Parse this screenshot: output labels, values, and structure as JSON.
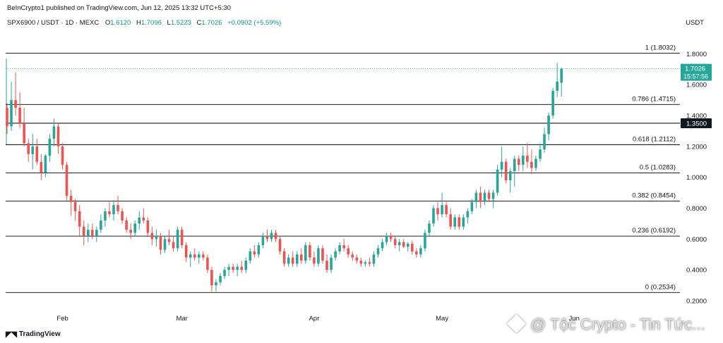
{
  "header": {
    "publisher": "BeInCrypto1 published on TradingView.com, Jun 12, 2025 13:32 UTC+5:30"
  },
  "symbol": {
    "name": "SPX6900 / USDT · 1D · MEXC",
    "open_label": "O",
    "open": "1.6120",
    "high_label": "H",
    "high": "1.7096",
    "low_label": "L",
    "low": "1.5223",
    "close_label": "C",
    "close": "1.7026",
    "change": "+0.0902 (+5.59%)"
  },
  "currency": "USDT",
  "brand": "TradingView",
  "watermark": "@ Tộc Crypto - Tin Tức...",
  "colors": {
    "up": "#26a69a",
    "down": "#ef5350",
    "fib_line": "#000000",
    "price_tag": "#26a69a",
    "level_tag": "#131722"
  },
  "chart_data": {
    "type": "candlestick",
    "title": "",
    "xlabel": "",
    "ylabel": "",
    "ylim": [
      0.15,
      1.92
    ],
    "y_ticks": [
      "1.8000",
      "1.6000",
      "1.4000",
      "1.2000",
      "1.0000",
      "0.8000",
      "0.6000",
      "0.4000",
      "0.2000"
    ],
    "x_ticks": [
      {
        "label": "Feb",
        "index": 13
      },
      {
        "label": "Mar",
        "index": 41
      },
      {
        "label": "Apr",
        "index": 72
      },
      {
        "label": "May",
        "index": 102
      },
      {
        "label": "Jun",
        "index": 133
      }
    ],
    "fib_levels": [
      {
        "label": "1 (1.8032)",
        "value": 1.8032
      },
      {
        "label": "0.786 (1.4715)",
        "value": 1.4715
      },
      {
        "label": "0.618 (1.2112)",
        "value": 1.2112
      },
      {
        "label": "0.5 (1.0283)",
        "value": 1.0283
      },
      {
        "label": "0.382 (0.8454)",
        "value": 0.8454
      },
      {
        "label": "0.236 (0.6192)",
        "value": 0.6192
      },
      {
        "label": "0 (0.2534)",
        "value": 0.2534
      }
    ],
    "horizontal_line": {
      "value": 1.35,
      "label": "1.3500"
    },
    "last_price": {
      "value": 1.7026,
      "label": "1.7026",
      "countdown": "15:57:56"
    },
    "candles": [
      [
        1.45,
        1.48,
        1.28,
        1.33
      ],
      [
        1.33,
        1.62,
        1.3,
        1.5
      ],
      [
        1.5,
        1.68,
        1.4,
        1.45
      ],
      [
        1.45,
        1.55,
        1.32,
        1.35
      ],
      [
        1.35,
        1.45,
        1.2,
        1.22
      ],
      [
        1.22,
        1.25,
        1.1,
        1.15
      ],
      [
        1.15,
        1.28,
        1.05,
        1.2
      ],
      [
        1.2,
        1.25,
        1.08,
        1.1
      ],
      [
        1.1,
        1.15,
        0.98,
        1.03
      ],
      [
        1.03,
        1.15,
        1.0,
        1.14
      ],
      [
        1.14,
        1.28,
        1.1,
        1.25
      ],
      [
        1.25,
        1.38,
        1.2,
        1.33
      ],
      [
        1.33,
        1.35,
        1.15,
        1.2
      ],
      [
        1.2,
        1.22,
        1.05,
        1.08
      ],
      [
        1.08,
        1.1,
        0.85,
        0.88
      ],
      [
        0.88,
        0.92,
        0.75,
        0.84
      ],
      [
        0.84,
        0.86,
        0.72,
        0.78
      ],
      [
        0.78,
        0.82,
        0.62,
        0.68
      ],
      [
        0.68,
        0.72,
        0.56,
        0.62
      ],
      [
        0.62,
        0.7,
        0.58,
        0.66
      ],
      [
        0.66,
        0.7,
        0.6,
        0.62
      ],
      [
        0.62,
        0.68,
        0.58,
        0.66
      ],
      [
        0.66,
        0.76,
        0.64,
        0.72
      ],
      [
        0.72,
        0.8,
        0.68,
        0.78
      ],
      [
        0.78,
        0.84,
        0.74,
        0.76
      ],
      [
        0.76,
        0.85,
        0.72,
        0.82
      ],
      [
        0.82,
        0.88,
        0.76,
        0.78
      ],
      [
        0.78,
        0.8,
        0.7,
        0.72
      ],
      [
        0.72,
        0.74,
        0.64,
        0.66
      ],
      [
        0.66,
        0.7,
        0.6,
        0.64
      ],
      [
        0.64,
        0.72,
        0.62,
        0.7
      ],
      [
        0.7,
        0.78,
        0.66,
        0.74
      ],
      [
        0.74,
        0.8,
        0.7,
        0.72
      ],
      [
        0.72,
        0.74,
        0.62,
        0.64
      ],
      [
        0.64,
        0.68,
        0.56,
        0.6
      ],
      [
        0.6,
        0.66,
        0.55,
        0.62
      ],
      [
        0.62,
        0.64,
        0.5,
        0.53
      ],
      [
        0.53,
        0.62,
        0.51,
        0.6
      ],
      [
        0.6,
        0.66,
        0.56,
        0.58
      ],
      [
        0.58,
        0.62,
        0.52,
        0.54
      ],
      [
        0.54,
        0.68,
        0.52,
        0.66
      ],
      [
        0.66,
        0.68,
        0.54,
        0.56
      ],
      [
        0.56,
        0.58,
        0.45,
        0.48
      ],
      [
        0.48,
        0.52,
        0.42,
        0.5
      ],
      [
        0.5,
        0.54,
        0.46,
        0.48
      ],
      [
        0.48,
        0.52,
        0.44,
        0.5
      ],
      [
        0.5,
        0.52,
        0.46,
        0.48
      ],
      [
        0.48,
        0.5,
        0.38,
        0.4
      ],
      [
        0.4,
        0.42,
        0.26,
        0.3
      ],
      [
        0.3,
        0.34,
        0.26,
        0.32
      ],
      [
        0.32,
        0.38,
        0.3,
        0.36
      ],
      [
        0.36,
        0.42,
        0.34,
        0.4
      ],
      [
        0.4,
        0.44,
        0.36,
        0.42
      ],
      [
        0.42,
        0.44,
        0.38,
        0.4
      ],
      [
        0.4,
        0.44,
        0.36,
        0.42
      ],
      [
        0.42,
        0.46,
        0.38,
        0.4
      ],
      [
        0.4,
        0.48,
        0.38,
        0.46
      ],
      [
        0.46,
        0.54,
        0.44,
        0.52
      ],
      [
        0.52,
        0.56,
        0.48,
        0.5
      ],
      [
        0.5,
        0.58,
        0.48,
        0.56
      ],
      [
        0.56,
        0.64,
        0.54,
        0.62
      ],
      [
        0.62,
        0.66,
        0.58,
        0.6
      ],
      [
        0.6,
        0.66,
        0.58,
        0.64
      ],
      [
        0.64,
        0.66,
        0.58,
        0.6
      ],
      [
        0.6,
        0.62,
        0.5,
        0.52
      ],
      [
        0.52,
        0.54,
        0.42,
        0.44
      ],
      [
        0.44,
        0.5,
        0.42,
        0.48
      ],
      [
        0.48,
        0.52,
        0.42,
        0.44
      ],
      [
        0.44,
        0.52,
        0.42,
        0.5
      ],
      [
        0.5,
        0.54,
        0.44,
        0.46
      ],
      [
        0.46,
        0.58,
        0.44,
        0.56
      ],
      [
        0.56,
        0.58,
        0.46,
        0.48
      ],
      [
        0.48,
        0.52,
        0.42,
        0.44
      ],
      [
        0.44,
        0.56,
        0.42,
        0.54
      ],
      [
        0.54,
        0.56,
        0.44,
        0.46
      ],
      [
        0.46,
        0.5,
        0.38,
        0.4
      ],
      [
        0.4,
        0.5,
        0.38,
        0.48
      ],
      [
        0.48,
        0.54,
        0.46,
        0.52
      ],
      [
        0.52,
        0.58,
        0.5,
        0.56
      ],
      [
        0.56,
        0.6,
        0.52,
        0.54
      ],
      [
        0.54,
        0.56,
        0.48,
        0.5
      ],
      [
        0.5,
        0.52,
        0.46,
        0.48
      ],
      [
        0.48,
        0.5,
        0.44,
        0.46
      ],
      [
        0.46,
        0.48,
        0.42,
        0.44
      ],
      [
        0.44,
        0.46,
        0.42,
        0.45
      ],
      [
        0.45,
        0.48,
        0.42,
        0.44
      ],
      [
        0.44,
        0.52,
        0.42,
        0.5
      ],
      [
        0.5,
        0.56,
        0.48,
        0.54
      ],
      [
        0.54,
        0.6,
        0.52,
        0.58
      ],
      [
        0.58,
        0.64,
        0.56,
        0.62
      ],
      [
        0.62,
        0.64,
        0.58,
        0.6
      ],
      [
        0.6,
        0.62,
        0.54,
        0.56
      ],
      [
        0.56,
        0.6,
        0.52,
        0.58
      ],
      [
        0.58,
        0.6,
        0.54,
        0.55
      ],
      [
        0.55,
        0.58,
        0.52,
        0.57
      ],
      [
        0.57,
        0.59,
        0.5,
        0.52
      ],
      [
        0.52,
        0.54,
        0.48,
        0.5
      ],
      [
        0.5,
        0.56,
        0.48,
        0.54
      ],
      [
        0.54,
        0.66,
        0.52,
        0.64
      ],
      [
        0.64,
        0.72,
        0.62,
        0.7
      ],
      [
        0.7,
        0.82,
        0.68,
        0.8
      ],
      [
        0.8,
        0.84,
        0.72,
        0.76
      ],
      [
        0.76,
        0.9,
        0.74,
        0.82
      ],
      [
        0.82,
        0.84,
        0.74,
        0.76
      ],
      [
        0.76,
        0.8,
        0.66,
        0.68
      ],
      [
        0.68,
        0.76,
        0.66,
        0.74
      ],
      [
        0.74,
        0.76,
        0.66,
        0.68
      ],
      [
        0.68,
        0.76,
        0.66,
        0.74
      ],
      [
        0.74,
        0.8,
        0.7,
        0.78
      ],
      [
        0.78,
        0.86,
        0.76,
        0.84
      ],
      [
        0.84,
        0.92,
        0.8,
        0.9
      ],
      [
        0.9,
        0.94,
        0.8,
        0.84
      ],
      [
        0.84,
        0.92,
        0.82,
        0.9
      ],
      [
        0.9,
        0.92,
        0.84,
        0.86
      ],
      [
        0.86,
        0.92,
        0.8,
        0.9
      ],
      [
        0.9,
        1.08,
        0.88,
        1.05
      ],
      [
        1.05,
        1.2,
        1.0,
        1.1
      ],
      [
        1.1,
        1.12,
        0.96,
        0.98
      ],
      [
        0.98,
        1.06,
        0.9,
        1.04
      ],
      [
        1.04,
        1.14,
        0.94,
        1.12
      ],
      [
        1.12,
        1.14,
        1.04,
        1.08
      ],
      [
        1.08,
        1.2,
        1.04,
        1.14
      ],
      [
        1.14,
        1.22,
        1.06,
        1.1
      ],
      [
        1.1,
        1.18,
        1.02,
        1.06
      ],
      [
        1.06,
        1.14,
        1.04,
        1.12
      ],
      [
        1.12,
        1.22,
        1.1,
        1.18
      ],
      [
        1.18,
        1.32,
        1.16,
        1.28
      ],
      [
        1.28,
        1.42,
        1.24,
        1.4
      ],
      [
        1.4,
        1.58,
        1.38,
        1.56
      ],
      [
        1.56,
        1.74,
        1.52,
        1.62
      ],
      [
        1.612,
        1.7096,
        1.5223,
        1.7026
      ]
    ]
  }
}
